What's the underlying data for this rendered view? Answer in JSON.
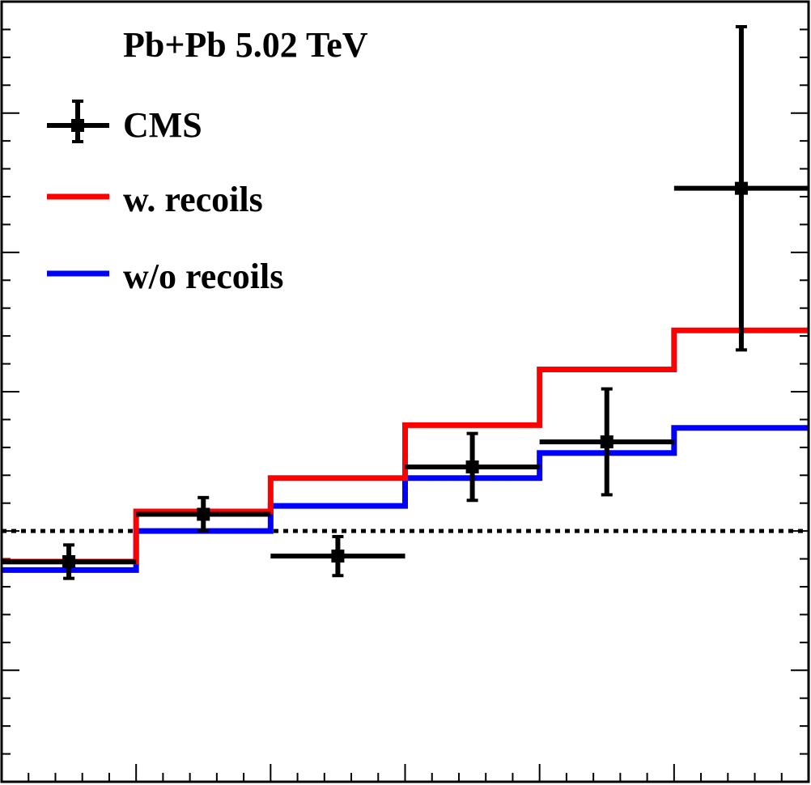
{
  "chart_data": {
    "type": "step",
    "title": "Pb+Pb 5.02 TeV",
    "xlabel": "",
    "ylabel": "",
    "xlim": [
      0,
      6
    ],
    "ylim": [
      -0.9,
      1.9
    ],
    "grid": false,
    "legend_position": "top-left",
    "reference_line": {
      "y": 0,
      "style": "dotted",
      "color": "#000000"
    },
    "bin_edges": [
      0,
      1,
      2,
      3,
      4,
      5,
      6
    ],
    "series": [
      {
        "name": "CMS",
        "kind": "points",
        "color": "#000000",
        "x": [
          0.5,
          1.5,
          2.5,
          3.5,
          4.5,
          5.5
        ],
        "xerr": [
          0.5,
          0.5,
          0.5,
          0.5,
          0.5,
          0.5
        ],
        "y": [
          -0.11,
          0.06,
          -0.09,
          0.23,
          0.32,
          1.23
        ],
        "yerr": [
          0.06,
          0.06,
          0.07,
          0.12,
          0.19,
          0.58
        ]
      },
      {
        "name": "w. recoils",
        "kind": "histogram",
        "color": "#ff0000",
        "values": [
          -0.11,
          0.07,
          0.19,
          0.38,
          0.58,
          0.72
        ]
      },
      {
        "name": "w/o recoils",
        "kind": "histogram",
        "color": "#0000ff",
        "values": [
          -0.14,
          0.0,
          0.09,
          0.19,
          0.28,
          0.37
        ]
      }
    ]
  }
}
